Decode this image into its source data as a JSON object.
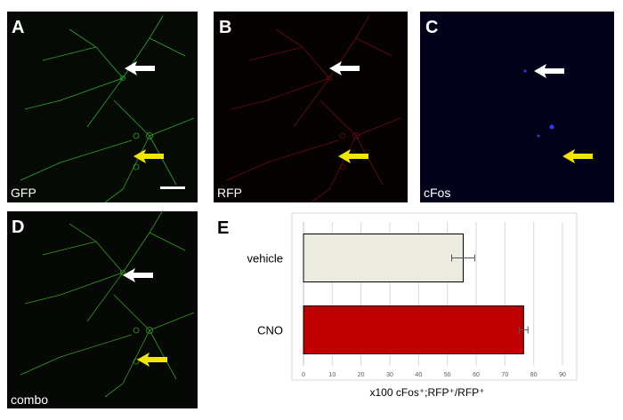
{
  "panels": [
    {
      "letter": "A",
      "caption": "GFP"
    },
    {
      "letter": "B",
      "caption": "RFP"
    },
    {
      "letter": "C",
      "caption": "cFos"
    },
    {
      "letter": "D",
      "caption": "combo"
    }
  ],
  "chart_data": {
    "type": "bar",
    "orientation": "horizontal",
    "panel_letter": "E",
    "categories": [
      "vehicle",
      "CNO"
    ],
    "values": [
      55.5,
      76.5
    ],
    "errors": [
      4,
      1.5
    ],
    "colors": [
      "#ecebdf",
      "#c00000"
    ],
    "xlim": [
      0,
      90
    ],
    "xticks": [
      0,
      10,
      20,
      30,
      40,
      50,
      60,
      70,
      80,
      90
    ],
    "xlabel": "x100 cFos⁺;RFP⁺/RFP⁺",
    "grid": true
  }
}
